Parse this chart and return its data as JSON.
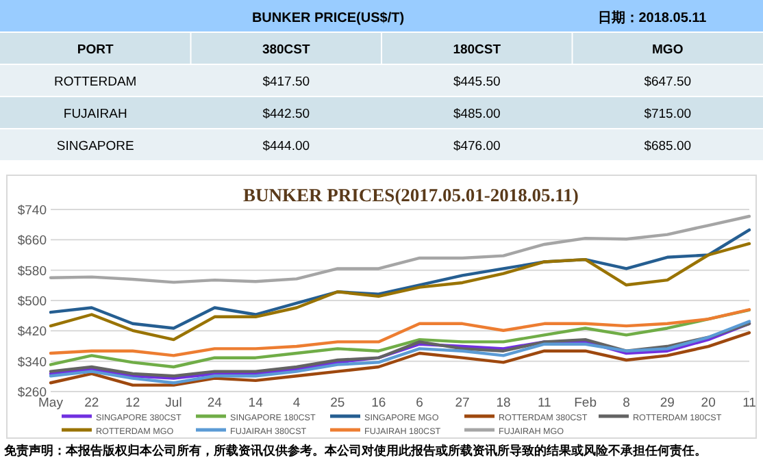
{
  "chart_data": [
    {
      "type": "other",
      "title": "BUNKER  PRICE(US$/T)",
      "annotations": [
        "日期：2018.05.11"
      ],
      "xlabel": "PORT",
      "categories": [
        "ROTTERDAM",
        "FUJAIRAH",
        "SINGAPORE"
      ],
      "series": [
        {
          "name": "380CST",
          "colors": [
            "#e8f0f4",
            "#d0e2ea",
            "#e8f0f4"
          ],
          "values": [
            417.5,
            442.5,
            444
          ],
          "value_labels": [
            "$417.50",
            "$442.50",
            "$444.00"
          ]
        },
        {
          "name": "180CST",
          "colors": [
            "#e8f0f4",
            "#d0e2ea",
            "#e8f0f4"
          ],
          "values": [
            445.5,
            485,
            476
          ],
          "value_labels": [
            "$445.50",
            "$485.00",
            "$476.00"
          ]
        },
        {
          "name": "MGO",
          "colors": [
            "#e8f0f4",
            "#d0e2ea",
            "#e8f0f4"
          ],
          "values": [
            647.5,
            715,
            685
          ],
          "value_labels": [
            "$647.50",
            "$715.00",
            "$685.00"
          ]
        }
      ]
    },
    {
      "type": "line",
      "title": "BUNKER PRICES(2017.05.01-2018.05.11)",
      "annotations": [
        "免责声明：本报告版权归本公司所有，所载资讯仅供参考。本公司对使用此报告或所载资讯所导致的结果或风险不承担任何责任。"
      ],
      "x": [
        "2017-05-01",
        "2017-05-23",
        "2017-06-14",
        "2017-07-06",
        "2017-07-28",
        "2017-08-19",
        "2017-09-10",
        "2017-10-02",
        "2017-10-24",
        "2017-11-15",
        "2017-12-08",
        "2017-12-30",
        "2018-01-21",
        "2018-02-12",
        "2018-03-06",
        "2018-03-28",
        "2018-04-19",
        "2018-05-11"
      ],
      "xlim": [
        "2017-05-01",
        "2018-05-11"
      ],
      "xticks": [
        {
          "value": "2017-05-01",
          "label": "May"
        },
        {
          "value": "2017-05-23",
          "label": "22"
        },
        {
          "value": "2017-06-14",
          "label": "12"
        },
        {
          "value": "2017-07-06",
          "label": "Jul"
        },
        {
          "value": "2017-07-28",
          "label": "24"
        },
        {
          "value": "2017-08-19",
          "label": "14"
        },
        {
          "value": "2017-09-10",
          "label": "4"
        },
        {
          "value": "2017-10-02",
          "label": "25"
        },
        {
          "value": "2017-10-24",
          "label": "16"
        },
        {
          "value": "2017-11-15",
          "label": "6"
        },
        {
          "value": "2017-12-08",
          "label": "27"
        },
        {
          "value": "2017-12-30",
          "label": "18"
        },
        {
          "value": "2018-01-21",
          "label": "11"
        },
        {
          "value": "2018-02-12",
          "label": "Feb"
        },
        {
          "value": "2018-03-06",
          "label": "8"
        },
        {
          "value": "2018-03-28",
          "label": "29"
        },
        {
          "value": "2018-04-19",
          "label": "20"
        },
        {
          "value": "2018-05-11",
          "label": "11"
        }
      ],
      "ylim": [
        260,
        740
      ],
      "yticks": [
        {
          "value": 260,
          "label": "$260"
        },
        {
          "value": 340,
          "label": "$340"
        },
        {
          "value": 420,
          "label": "$420"
        },
        {
          "value": 500,
          "label": "$500"
        },
        {
          "value": 580,
          "label": "$580"
        },
        {
          "value": 660,
          "label": "$660"
        },
        {
          "value": 740,
          "label": "$740"
        }
      ],
      "grid": "y",
      "legend": "bottom",
      "series": [
        {
          "name": "SINGAPORE 380CST",
          "color": "#7030e0",
          "values": [
            307,
            319,
            301,
            295,
            307,
            307,
            319,
            337,
            349,
            385,
            379,
            373,
            391,
            391,
            361,
            367,
            397,
            439
          ]
        },
        {
          "name": "SINGAPORE 180CST",
          "color": "#70ad47",
          "values": [
            331,
            355,
            337,
            325,
            349,
            349,
            361,
            373,
            367,
            397,
            391,
            391,
            409,
            427,
            409,
            427,
            451,
            475
          ]
        },
        {
          "name": "SINGAPORE MGO",
          "color": "#255e91",
          "values": [
            469,
            481,
            439,
            427,
            481,
            463,
            493,
            523,
            517,
            541,
            566,
            584,
            602,
            608,
            584,
            614,
            620,
            686
          ]
        },
        {
          "name": "ROTTERDAM 380CST",
          "color": "#9e480e",
          "values": [
            283,
            307,
            277,
            277,
            295,
            289,
            301,
            313,
            325,
            361,
            349,
            337,
            367,
            367,
            343,
            355,
            379,
            415
          ]
        },
        {
          "name": "ROTTERDAM 180CST",
          "color": "#636363",
          "values": [
            313,
            325,
            307,
            301,
            313,
            313,
            325,
            343,
            349,
            391,
            373,
            367,
            391,
            397,
            367,
            379,
            403,
            439
          ]
        },
        {
          "name": "ROTTERDAM MGO",
          "color": "#997300",
          "values": [
            433,
            463,
            421,
            397,
            457,
            457,
            481,
            523,
            511,
            535,
            547,
            571,
            602,
            608,
            541,
            554,
            620,
            650
          ]
        },
        {
          "name": "FUJAIRAH 380CST",
          "color": "#5b9bd5",
          "values": [
            301,
            313,
            295,
            283,
            301,
            301,
            313,
            331,
            337,
            373,
            367,
            355,
            385,
            385,
            367,
            373,
            403,
            445
          ]
        },
        {
          "name": "FUJAIRAH 180CST",
          "color": "#ed7d31",
          "values": [
            361,
            367,
            367,
            355,
            373,
            373,
            379,
            391,
            391,
            439,
            439,
            421,
            439,
            439,
            433,
            439,
            451,
            476
          ]
        },
        {
          "name": "FUJAIRAH MGO",
          "color": "#a5a5a5",
          "values": [
            560,
            562,
            556,
            548,
            554,
            550,
            557,
            584,
            584,
            612,
            612,
            618,
            648,
            664,
            662,
            674,
            698,
            722
          ]
        }
      ]
    }
  ]
}
